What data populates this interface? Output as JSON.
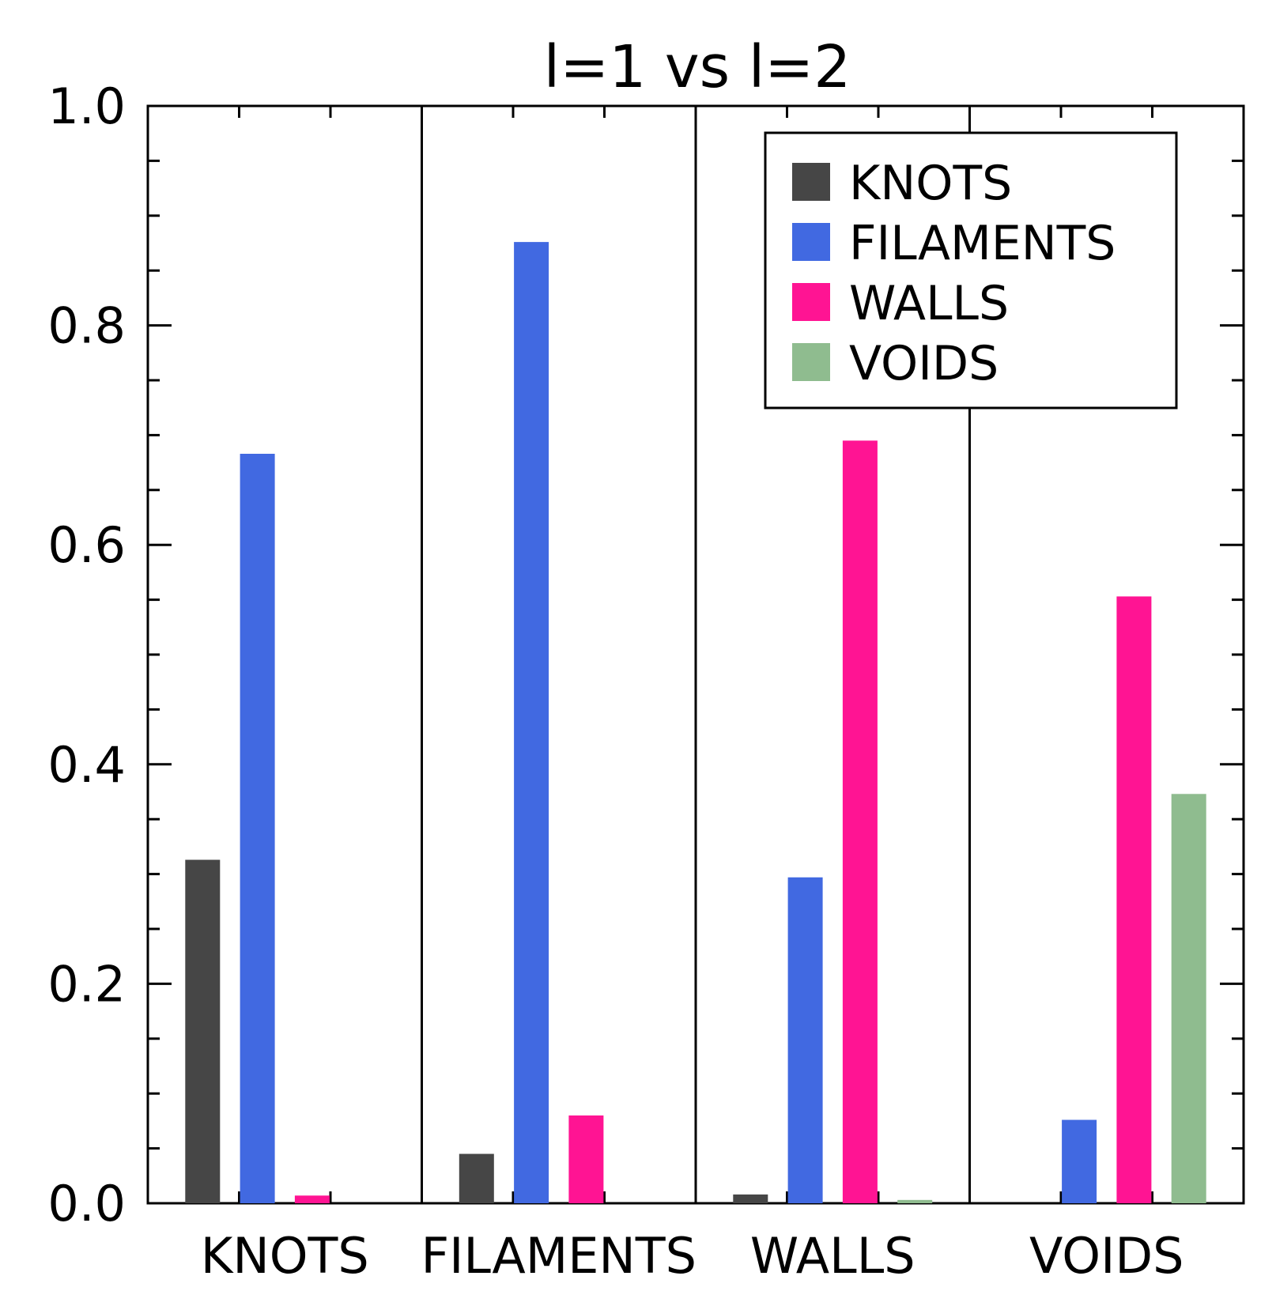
{
  "chart_data": {
    "type": "bar",
    "title": "l=1 vs l=2",
    "xlabel": "",
    "ylabel": "",
    "ylim": [
      0,
      1.0
    ],
    "yticks": [
      "0.0",
      "0.2",
      "0.4",
      "0.6",
      "0.8",
      "1.0"
    ],
    "categories": [
      "KNOTS",
      "FILAMENTS",
      "WALLS",
      "VOIDS"
    ],
    "series": [
      {
        "name": "KNOTS",
        "color": "#464646",
        "values": [
          0.313,
          0.045,
          0.008,
          0.0
        ]
      },
      {
        "name": "FILAMENTS",
        "color": "#4169e1",
        "values": [
          0.683,
          0.876,
          0.297,
          0.076
        ]
      },
      {
        "name": "WALLS",
        "color": "#ff1493",
        "values": [
          0.007,
          0.08,
          0.695,
          0.553
        ]
      },
      {
        "name": "VOIDS",
        "color": "#8fbc8f",
        "values": [
          0.0,
          0.0,
          0.003,
          0.373
        ]
      }
    ],
    "legend_position": "top-right",
    "grid": false
  }
}
